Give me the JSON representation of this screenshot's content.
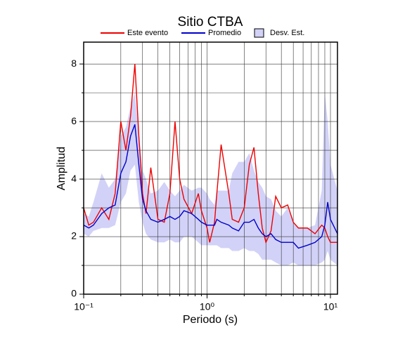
{
  "chart_data": {
    "type": "line",
    "title": "Sitio CTBA",
    "xlabel": "Periodo (s)",
    "ylabel": "Amplitud",
    "xscale": "log",
    "grid": true,
    "xlim": [
      0.1,
      11.4
    ],
    "ylim": [
      0,
      8.76
    ],
    "xticks": [
      {
        "value": 0.1,
        "label": "10⁻¹"
      },
      {
        "value": 1,
        "label": "10⁰"
      },
      {
        "value": 10,
        "label": "10¹"
      }
    ],
    "xminor": [
      0.2,
      0.3,
      0.4,
      0.5,
      0.6,
      0.7,
      0.8,
      0.9,
      2,
      3,
      4,
      5,
      6,
      7,
      8,
      9
    ],
    "yticks": [
      0,
      2,
      4,
      6,
      8
    ],
    "yminor": [
      1,
      3,
      5,
      7
    ],
    "x": [
      0.1,
      0.11,
      0.12,
      0.14,
      0.16,
      0.18,
      0.2,
      0.22,
      0.24,
      0.26,
      0.28,
      0.3,
      0.32,
      0.35,
      0.4,
      0.45,
      0.5,
      0.55,
      0.6,
      0.65,
      0.75,
      0.85,
      0.9,
      1.0,
      1.05,
      1.15,
      1.2,
      1.3,
      1.5,
      1.6,
      1.8,
      2.0,
      2.2,
      2.4,
      2.6,
      2.8,
      3.0,
      3.3,
      3.6,
      4.0,
      4.5,
      5.0,
      5.5,
      6.5,
      7.5,
      8.5,
      9.0,
      9.5,
      10,
      11.4
    ],
    "band": {
      "name": "Desv. Est.",
      "color": "#d2d2f8",
      "lower": [
        2.1,
        2.0,
        2.2,
        2.3,
        2.3,
        2.4,
        3.2,
        3.5,
        4.3,
        4.5,
        3.2,
        2.5,
        2.1,
        1.9,
        1.8,
        1.8,
        1.9,
        1.8,
        1.8,
        2.0,
        2.0,
        1.8,
        1.7,
        1.7,
        1.7,
        1.7,
        1.7,
        1.6,
        1.6,
        1.5,
        1.5,
        1.6,
        1.5,
        1.5,
        1.4,
        1.2,
        1.2,
        1.2,
        1.1,
        1.0,
        1.0,
        1.1,
        1.0,
        1.0,
        1.0,
        1.1,
        1.2,
        1.5,
        1.2,
        1.0
      ],
      "upper": [
        2.8,
        2.7,
        3.2,
        4.2,
        3.7,
        4.0,
        5.5,
        5.8,
        6.5,
        7.0,
        5.6,
        4.3,
        4.0,
        3.5,
        3.6,
        3.9,
        3.6,
        3.4,
        3.6,
        3.8,
        3.6,
        3.7,
        3.7,
        3.5,
        3.3,
        3.1,
        3.6,
        3.6,
        3.6,
        4.2,
        4.6,
        4.6,
        4.9,
        4.3,
        3.9,
        3.7,
        3.4,
        3.3,
        2.9,
        2.7,
        3.0,
        2.5,
        2.3,
        2.3,
        2.4,
        3.6,
        7.0,
        6.0,
        4.5,
        3.6
      ]
    },
    "series": [
      {
        "name": "Este evento",
        "color": "#ee0000",
        "values": [
          3.0,
          2.4,
          2.5,
          3.0,
          2.6,
          3.5,
          6.0,
          5.0,
          6.2,
          8.0,
          5.5,
          3.5,
          2.8,
          4.4,
          2.6,
          2.5,
          3.5,
          6.0,
          4.0,
          3.3,
          2.8,
          3.5,
          2.9,
          2.3,
          1.8,
          2.5,
          3.5,
          5.2,
          3.5,
          2.6,
          2.5,
          3.0,
          4.5,
          5.1,
          3.5,
          2.3,
          1.8,
          2.2,
          3.4,
          3.0,
          3.1,
          2.5,
          2.3,
          2.3,
          2.1,
          2.4,
          2.3,
          2.0,
          1.8,
          1.8
        ]
      },
      {
        "name": "Promedio",
        "color": "#0000cc",
        "values": [
          2.4,
          2.3,
          2.4,
          2.8,
          3.0,
          3.1,
          4.2,
          4.6,
          5.5,
          5.9,
          4.5,
          3.3,
          2.9,
          2.6,
          2.5,
          2.6,
          2.7,
          2.6,
          2.7,
          2.9,
          2.8,
          2.6,
          2.5,
          2.4,
          2.4,
          2.4,
          2.6,
          2.5,
          2.4,
          2.3,
          2.2,
          2.5,
          2.5,
          2.6,
          2.3,
          2.1,
          2.0,
          2.1,
          1.9,
          1.8,
          1.8,
          1.8,
          1.6,
          1.7,
          1.8,
          2.0,
          2.4,
          3.2,
          2.6,
          2.1
        ]
      }
    ]
  }
}
